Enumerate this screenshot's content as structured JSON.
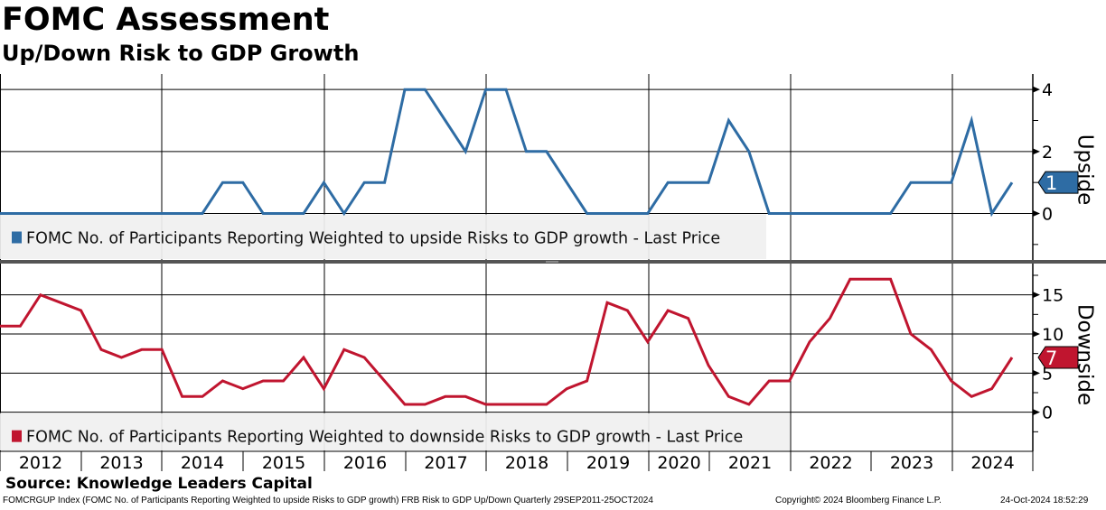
{
  "header": {
    "title": "FOMC Assessment",
    "subtitle": "Up/Down Risk to GDP Growth"
  },
  "source": "Source: Knowledge Leaders Capital",
  "footer": {
    "description": "FOMCRGUP Index (FOMC No.  of Participants Reporting Weighted to upside Risks to GDP growth) FRB Risk to GDP Up/Down  Quarterly 29SEP2011-25OCT2024",
    "copyright": "Copyright© 2024 Bloomberg Finance L.P.",
    "timestamp": "24-Oct-2024 18:52:29"
  },
  "colors": {
    "upside": "#2e6ca4",
    "downside": "#c0152f",
    "legend_bg": "#f0f0f0"
  },
  "x_axis": {
    "years": [
      "2012",
      "2013",
      "2014",
      "2015",
      "2016",
      "2017",
      "2018",
      "2019",
      "2020",
      "2021",
      "2022",
      "2023",
      "2024"
    ]
  },
  "chart_data": [
    {
      "type": "line",
      "name": "upside",
      "axis_label": "Upside",
      "legend": "FOMC No. of Participants Reporting Weighted to upside Risks to GDP growth - Last Price",
      "legend_placement": "bottom-left",
      "frequency": "quarterly",
      "ylim": [
        -1.5,
        4.5
      ],
      "yticks": [
        0,
        2,
        4
      ],
      "last_value": "1",
      "values": [
        0,
        0,
        0,
        0,
        0,
        0,
        0,
        0,
        0,
        0,
        0,
        1,
        1,
        0,
        0,
        0,
        1,
        0,
        1,
        1,
        4,
        4,
        3,
        2,
        4,
        4,
        2,
        2,
        1,
        0,
        0,
        0,
        0,
        1,
        1,
        1,
        3,
        2,
        0,
        0,
        0,
        0,
        0,
        0,
        0,
        1,
        1,
        1,
        3,
        0,
        1
      ]
    },
    {
      "type": "line",
      "name": "downside",
      "axis_label": "Downside",
      "legend": "FOMC No. of Participants Reporting Weighted to downside Risks to GDP growth - Last Price",
      "legend_placement": "bottom-left",
      "frequency": "quarterly",
      "ylim": [
        -5,
        19
      ],
      "yticks": [
        0,
        5,
        10,
        15
      ],
      "last_value": "7",
      "values": [
        11,
        11,
        15,
        14,
        13,
        8,
        7,
        8,
        8,
        2,
        2,
        4,
        3,
        4,
        4,
        7,
        3,
        8,
        7,
        4,
        1,
        1,
        2,
        2,
        1,
        1,
        1,
        1,
        3,
        4,
        14,
        13,
        9,
        13,
        12,
        6,
        2,
        1,
        4,
        4,
        9,
        12,
        17,
        17,
        17,
        10,
        8,
        4,
        2,
        3,
        7
      ]
    }
  ]
}
